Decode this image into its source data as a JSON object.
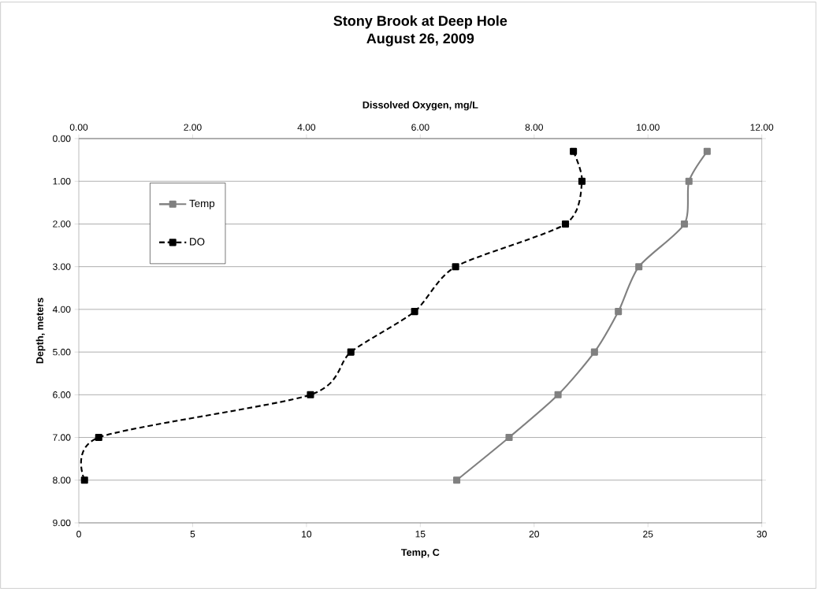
{
  "chart_data": {
    "type": "line",
    "title": "Stony Brook at Deep Hole",
    "subtitle": "August 26, 2009",
    "xlabel": "Temp, C",
    "x2label": "Dissolved Oxygen, mg/L",
    "ylabel": "Depth, meters",
    "xlim": [
      0,
      30
    ],
    "xticks": [
      0,
      5,
      10,
      15,
      20,
      25,
      30
    ],
    "x2lim": [
      0,
      12
    ],
    "x2ticks": [
      {
        "value": 0,
        "label": "0.00"
      },
      {
        "value": 2,
        "label": "2.00"
      },
      {
        "value": 4,
        "label": "4.00"
      },
      {
        "value": 6,
        "label": "6.00"
      },
      {
        "value": 8,
        "label": "8.00"
      },
      {
        "value": 10,
        "label": "10.00"
      },
      {
        "value": 12,
        "label": "12.00"
      }
    ],
    "ylim": [
      9,
      0
    ],
    "yticks": [
      {
        "value": 0,
        "label": "0.00"
      },
      {
        "value": 1,
        "label": "1.00"
      },
      {
        "value": 2,
        "label": "2.00"
      },
      {
        "value": 3,
        "label": "3.00"
      },
      {
        "value": 4,
        "label": "4.00"
      },
      {
        "value": 5,
        "label": "5.00"
      },
      {
        "value": 6,
        "label": "6.00"
      },
      {
        "value": 7,
        "label": "7.00"
      },
      {
        "value": 8,
        "label": "8.00"
      },
      {
        "value": 9,
        "label": "9.00"
      }
    ],
    "grid": "y",
    "legend": "top left",
    "marker": "square",
    "series": [
      {
        "name": "Temp",
        "color": "#808080",
        "line_style": "solid",
        "x": [
          27.6,
          26.8,
          26.6,
          24.6,
          23.7,
          22.65,
          21.05,
          18.9,
          16.6
        ],
        "values": [
          0.3,
          1.0,
          2.0,
          3.0,
          4.05,
          5.0,
          6.0,
          7.0,
          8.0
        ]
      },
      {
        "name": "DO",
        "color": "#000000",
        "line_style": "dashed",
        "axis": "x2",
        "x": [
          8.69,
          8.84,
          8.55,
          6.62,
          5.9,
          4.78,
          4.07,
          0.35,
          0.1
        ],
        "values": [
          0.3,
          1.0,
          2.0,
          3.0,
          4.05,
          5.0,
          6.0,
          7.0,
          8.0
        ]
      }
    ]
  }
}
